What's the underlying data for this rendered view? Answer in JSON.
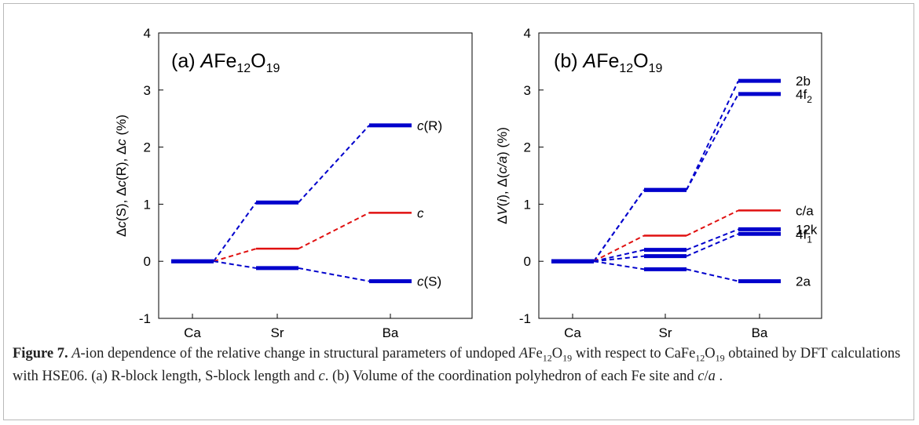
{
  "chart_data": [
    {
      "type": "line",
      "panel_label": "(a)",
      "title_prefix": "A",
      "title_main": "Fe",
      "title_sub1": "12",
      "title_o": "O",
      "title_sub2": "19",
      "ylabel": "Δc(S), Δc(R), Δc (%)",
      "categories": [
        "Ca",
        "Sr",
        "Ba"
      ],
      "ylim": [
        -1,
        4
      ],
      "yticks": [
        "-1",
        "0",
        "1",
        "2",
        "3",
        "4"
      ],
      "grid": false,
      "series": [
        {
          "name": "c(R)",
          "label_main": "c",
          "label_rest": "(R)",
          "label_sub": "",
          "values": [
            0,
            1.03,
            2.38
          ],
          "color": "#0000cc",
          "thick": true
        },
        {
          "name": "c",
          "label_main": "c",
          "label_rest": "",
          "label_sub": "",
          "values": [
            0,
            0.22,
            0.85
          ],
          "color": "#e01010",
          "thick": false
        },
        {
          "name": "c(S)",
          "label_main": "c",
          "label_rest": "(S)",
          "label_sub": "",
          "values": [
            0,
            -0.12,
            -0.35
          ],
          "color": "#0000cc",
          "thick": true
        }
      ]
    },
    {
      "type": "line",
      "panel_label": "(b)",
      "title_prefix": "A",
      "title_main": "Fe",
      "title_sub1": "12",
      "title_o": "O",
      "title_sub2": "19",
      "ylabel": "ΔV(i), Δ(c/a) (%)",
      "categories": [
        "Ca",
        "Sr",
        "Ba"
      ],
      "ylim": [
        -1,
        4
      ],
      "yticks": [
        "-1",
        "0",
        "1",
        "2",
        "3",
        "4"
      ],
      "grid": false,
      "series": [
        {
          "name": "2b",
          "label_main": "",
          "label_rest": "2b",
          "label_sub": "",
          "values": [
            0,
            1.25,
            3.16
          ],
          "color": "#0000cc",
          "thick": true
        },
        {
          "name": "4f2",
          "label_main": "",
          "label_rest": "4f",
          "label_sub": "2",
          "values": [
            0,
            1.25,
            2.93
          ],
          "color": "#0000cc",
          "thick": true
        },
        {
          "name": "c/a",
          "label_main": "",
          "label_rest": "c/a",
          "label_sub": "",
          "values": [
            0,
            0.45,
            0.89
          ],
          "color": "#e01010",
          "thick": false
        },
        {
          "name": "12k",
          "label_main": "",
          "label_rest": "12k",
          "label_sub": "",
          "values": [
            0,
            0.2,
            0.56
          ],
          "color": "#0000cc",
          "thick": true
        },
        {
          "name": "4f1",
          "label_main": "",
          "label_rest": "4f",
          "label_sub": "1",
          "values": [
            0,
            0.09,
            0.48
          ],
          "color": "#0000cc",
          "thick": true
        },
        {
          "name": "2a",
          "label_main": "",
          "label_rest": "2a",
          "label_sub": "",
          "values": [
            0,
            -0.14,
            -0.35
          ],
          "color": "#0000cc",
          "thick": true
        }
      ]
    }
  ],
  "caption": {
    "figure_label": "Figure 7.",
    "text": "A-ion dependence of the relative change in structural parameters of undoped AFe12O19 with respect to CaFe12O19 obtained by DFT calculations with HSE06. (a) R-block length, S-block length and c. (b) Volume of the coordination polyhedron of each Fe site and c/a ."
  }
}
